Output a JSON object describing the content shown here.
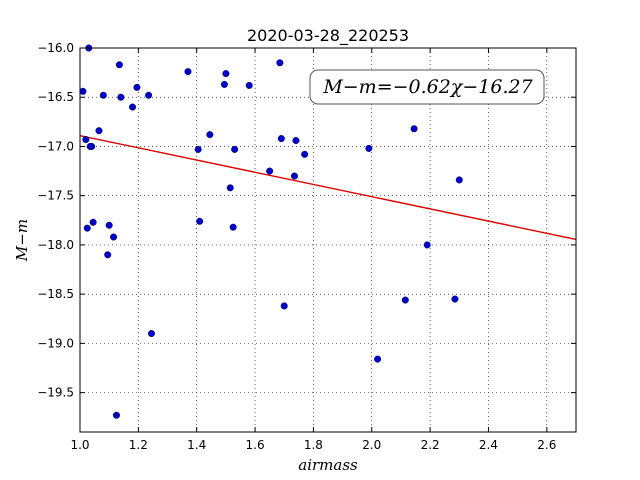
{
  "chart_data": {
    "type": "scatter",
    "title": "2020-03-28_220253",
    "xlabel": "airmass",
    "ylabel": "M−m",
    "xlim": [
      1.0,
      2.7
    ],
    "ylim": [
      -16.0,
      -19.9
    ],
    "y_inverted": true,
    "grid": true,
    "x_ticks": [
      1.0,
      1.2,
      1.4,
      1.6,
      1.8,
      2.0,
      2.2,
      2.4,
      2.6
    ],
    "x_tick_labels": [
      "1.0",
      "1.2",
      "1.4",
      "1.6",
      "1.8",
      "2.0",
      "2.2",
      "2.4",
      "2.6"
    ],
    "y_ticks": [
      -16.0,
      -16.5,
      -17.0,
      -17.5,
      -18.0,
      -18.5,
      -19.0,
      -19.5
    ],
    "y_tick_labels": [
      "−16.0",
      "−16.5",
      "−17.0",
      "−17.5",
      "−18.0",
      "−18.5",
      "−19.0",
      "−19.5"
    ],
    "annotation": "M−m=−0.62χ−16.27",
    "fit": {
      "slope": -0.62,
      "intercept": -16.27,
      "color": "#dd0000"
    },
    "marker_color": "#0000cc",
    "series": [
      {
        "points": [
          [
            1.01,
            -16.44
          ],
          [
            1.02,
            -16.93
          ],
          [
            1.025,
            -17.83
          ],
          [
            1.03,
            -16.0
          ],
          [
            1.035,
            -17.0
          ],
          [
            1.04,
            -17.0
          ],
          [
            1.045,
            -17.77
          ],
          [
            1.065,
            -16.84
          ],
          [
            1.08,
            -16.48
          ],
          [
            1.095,
            -18.1
          ],
          [
            1.1,
            -17.8
          ],
          [
            1.115,
            -17.92
          ],
          [
            1.125,
            -19.73
          ],
          [
            1.135,
            -16.17
          ],
          [
            1.14,
            -16.5
          ],
          [
            1.18,
            -16.6
          ],
          [
            1.195,
            -16.4
          ],
          [
            1.235,
            -16.48
          ],
          [
            1.245,
            -18.9
          ],
          [
            1.37,
            -16.24
          ],
          [
            1.405,
            -17.03
          ],
          [
            1.41,
            -17.76
          ],
          [
            1.445,
            -16.88
          ],
          [
            1.495,
            -16.37
          ],
          [
            1.5,
            -16.26
          ],
          [
            1.515,
            -17.42
          ],
          [
            1.525,
            -17.82
          ],
          [
            1.53,
            -17.03
          ],
          [
            1.58,
            -16.38
          ],
          [
            1.65,
            -17.25
          ],
          [
            1.685,
            -16.15
          ],
          [
            1.69,
            -16.92
          ],
          [
            1.7,
            -18.62
          ],
          [
            1.735,
            -17.3
          ],
          [
            1.74,
            -16.94
          ],
          [
            1.77,
            -17.08
          ],
          [
            1.99,
            -17.02
          ],
          [
            2.02,
            -19.16
          ],
          [
            2.115,
            -18.56
          ],
          [
            2.145,
            -16.82
          ],
          [
            2.19,
            -18.0
          ],
          [
            2.285,
            -18.55
          ],
          [
            2.3,
            -17.34
          ]
        ]
      }
    ]
  }
}
